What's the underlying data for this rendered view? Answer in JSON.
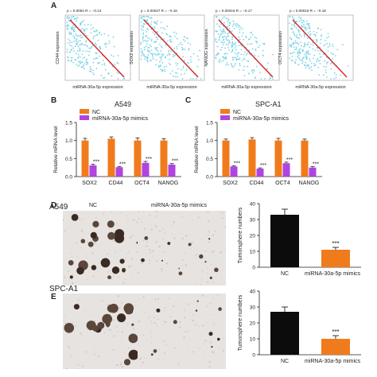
{
  "panels": {
    "A": "A",
    "B": "B",
    "C": "C",
    "D": "D",
    "E": "E"
  },
  "scatter_data": [
    {
      "stat": "p = 0.0054 R = −0.13",
      "ylabel": "CD44 expression",
      "xlabel": "miRNA-30a-5p expression",
      "r": -0.13
    },
    {
      "stat": "p = 0.00037 R = −0.16",
      "ylabel": "SOX2 expression",
      "xlabel": "miRNA-30a-5p expression",
      "r": -0.16
    },
    {
      "stat": "p = 0.00016 R = −0.17",
      "ylabel": "NANOG expression",
      "xlabel": "miRNA-30a-5p expression",
      "r": -0.17
    },
    {
      "stat": "p = 0.00016 R = −0.18",
      "ylabel": "OCT4 expression",
      "xlabel": "miRNA-30a-5p expression",
      "r": -0.18
    }
  ],
  "chart_data": [
    {
      "type": "bar",
      "title": "A549",
      "ylabel": "Relative mRNA level",
      "categories": [
        "SOX2",
        "CD44",
        "OCT4",
        "NANOG"
      ],
      "ylim": [
        0,
        1.5
      ],
      "yticks": [
        "0.0",
        "0.5",
        "1.0",
        "1.5"
      ],
      "legend": "top-left",
      "series": [
        {
          "name": "NC",
          "color": "#f07b1c",
          "values": [
            1.0,
            1.05,
            1.0,
            1.0
          ],
          "errors": [
            0.06,
            0.05,
            0.07,
            0.05
          ]
        },
        {
          "name": "miRNA-30a-5p mimics",
          "color": "#b044e0",
          "values": [
            0.31,
            0.26,
            0.38,
            0.33
          ],
          "errors": [
            0.03,
            0.02,
            0.04,
            0.03
          ]
        }
      ],
      "significance": [
        "***",
        "***",
        "***",
        "***"
      ]
    },
    {
      "type": "bar",
      "title": "SPC-A1",
      "ylabel": "Relative mRNA level",
      "categories": [
        "SOX2",
        "CD44",
        "OCT4",
        "NANOG"
      ],
      "ylim": [
        0,
        1.5
      ],
      "yticks": [
        "0.0",
        "0.5",
        "1.0",
        "1.5"
      ],
      "legend": "top-left",
      "series": [
        {
          "name": "NC",
          "color": "#f07b1c",
          "values": [
            1.0,
            1.03,
            1.0,
            1.0
          ],
          "errors": [
            0.04,
            0.05,
            0.06,
            0.04
          ]
        },
        {
          "name": "miRNA-30a-5p mimics",
          "color": "#b044e0",
          "values": [
            0.28,
            0.22,
            0.37,
            0.25
          ],
          "errors": [
            0.02,
            0.02,
            0.03,
            0.03
          ]
        }
      ],
      "significance": [
        "***",
        "***",
        "***",
        "***"
      ]
    },
    {
      "type": "bar",
      "title": "",
      "ylabel": "Tumorsphere numbers",
      "categories": [
        "NC",
        "miRNA-30a-5p mimics"
      ],
      "ylim": [
        0,
        40
      ],
      "yticks": [
        "0",
        "10",
        "20",
        "30",
        "40"
      ],
      "values": [
        33,
        11
      ],
      "errors": [
        3.5,
        1.5
      ],
      "colors": [
        "#0c0c0c",
        "#f07b1c"
      ],
      "significance": "***"
    },
    {
      "type": "bar",
      "title": "",
      "ylabel": "Tumorsphere numbers",
      "categories": [
        "NC",
        "miRNA-30a-5p mimics"
      ],
      "ylim": [
        0,
        40
      ],
      "yticks": [
        "0",
        "10",
        "20",
        "30",
        "40"
      ],
      "values": [
        27,
        10
      ],
      "errors": [
        3,
        2
      ],
      "colors": [
        "#0c0c0c",
        "#f07b1c"
      ],
      "significance": "***"
    }
  ],
  "photos": {
    "row1_cell": "A549",
    "row2_cell": "SPC-A1",
    "col_nc": "NC",
    "col_mimics": "miRNA-30a-5p mimics"
  }
}
